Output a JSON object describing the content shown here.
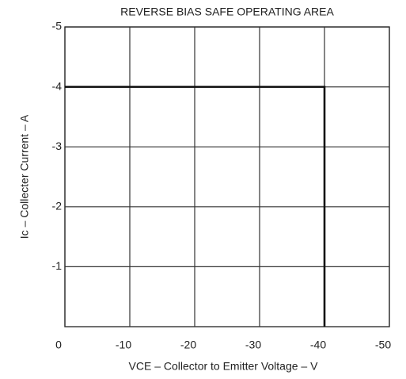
{
  "chart_data": {
    "type": "line",
    "title": "REVERSE BIAS SAFE OPERATING AREA",
    "x_label": "VCE – Collector to Emitter Voltage – V",
    "y_label": "Ic – Collecter Current – A",
    "x": [
      0,
      -40,
      -40
    ],
    "series": [
      {
        "color": "#111111",
        "values": [
          -4,
          -4,
          0
        ]
      }
    ],
    "xlim": [
      0,
      -50
    ],
    "xticks": [
      0,
      -10,
      -20,
      -30,
      -40,
      -50
    ],
    "ylim": [
      0,
      -5
    ],
    "yticks": [
      -1,
      -2,
      -3,
      -4,
      -5
    ],
    "grid": true
  }
}
